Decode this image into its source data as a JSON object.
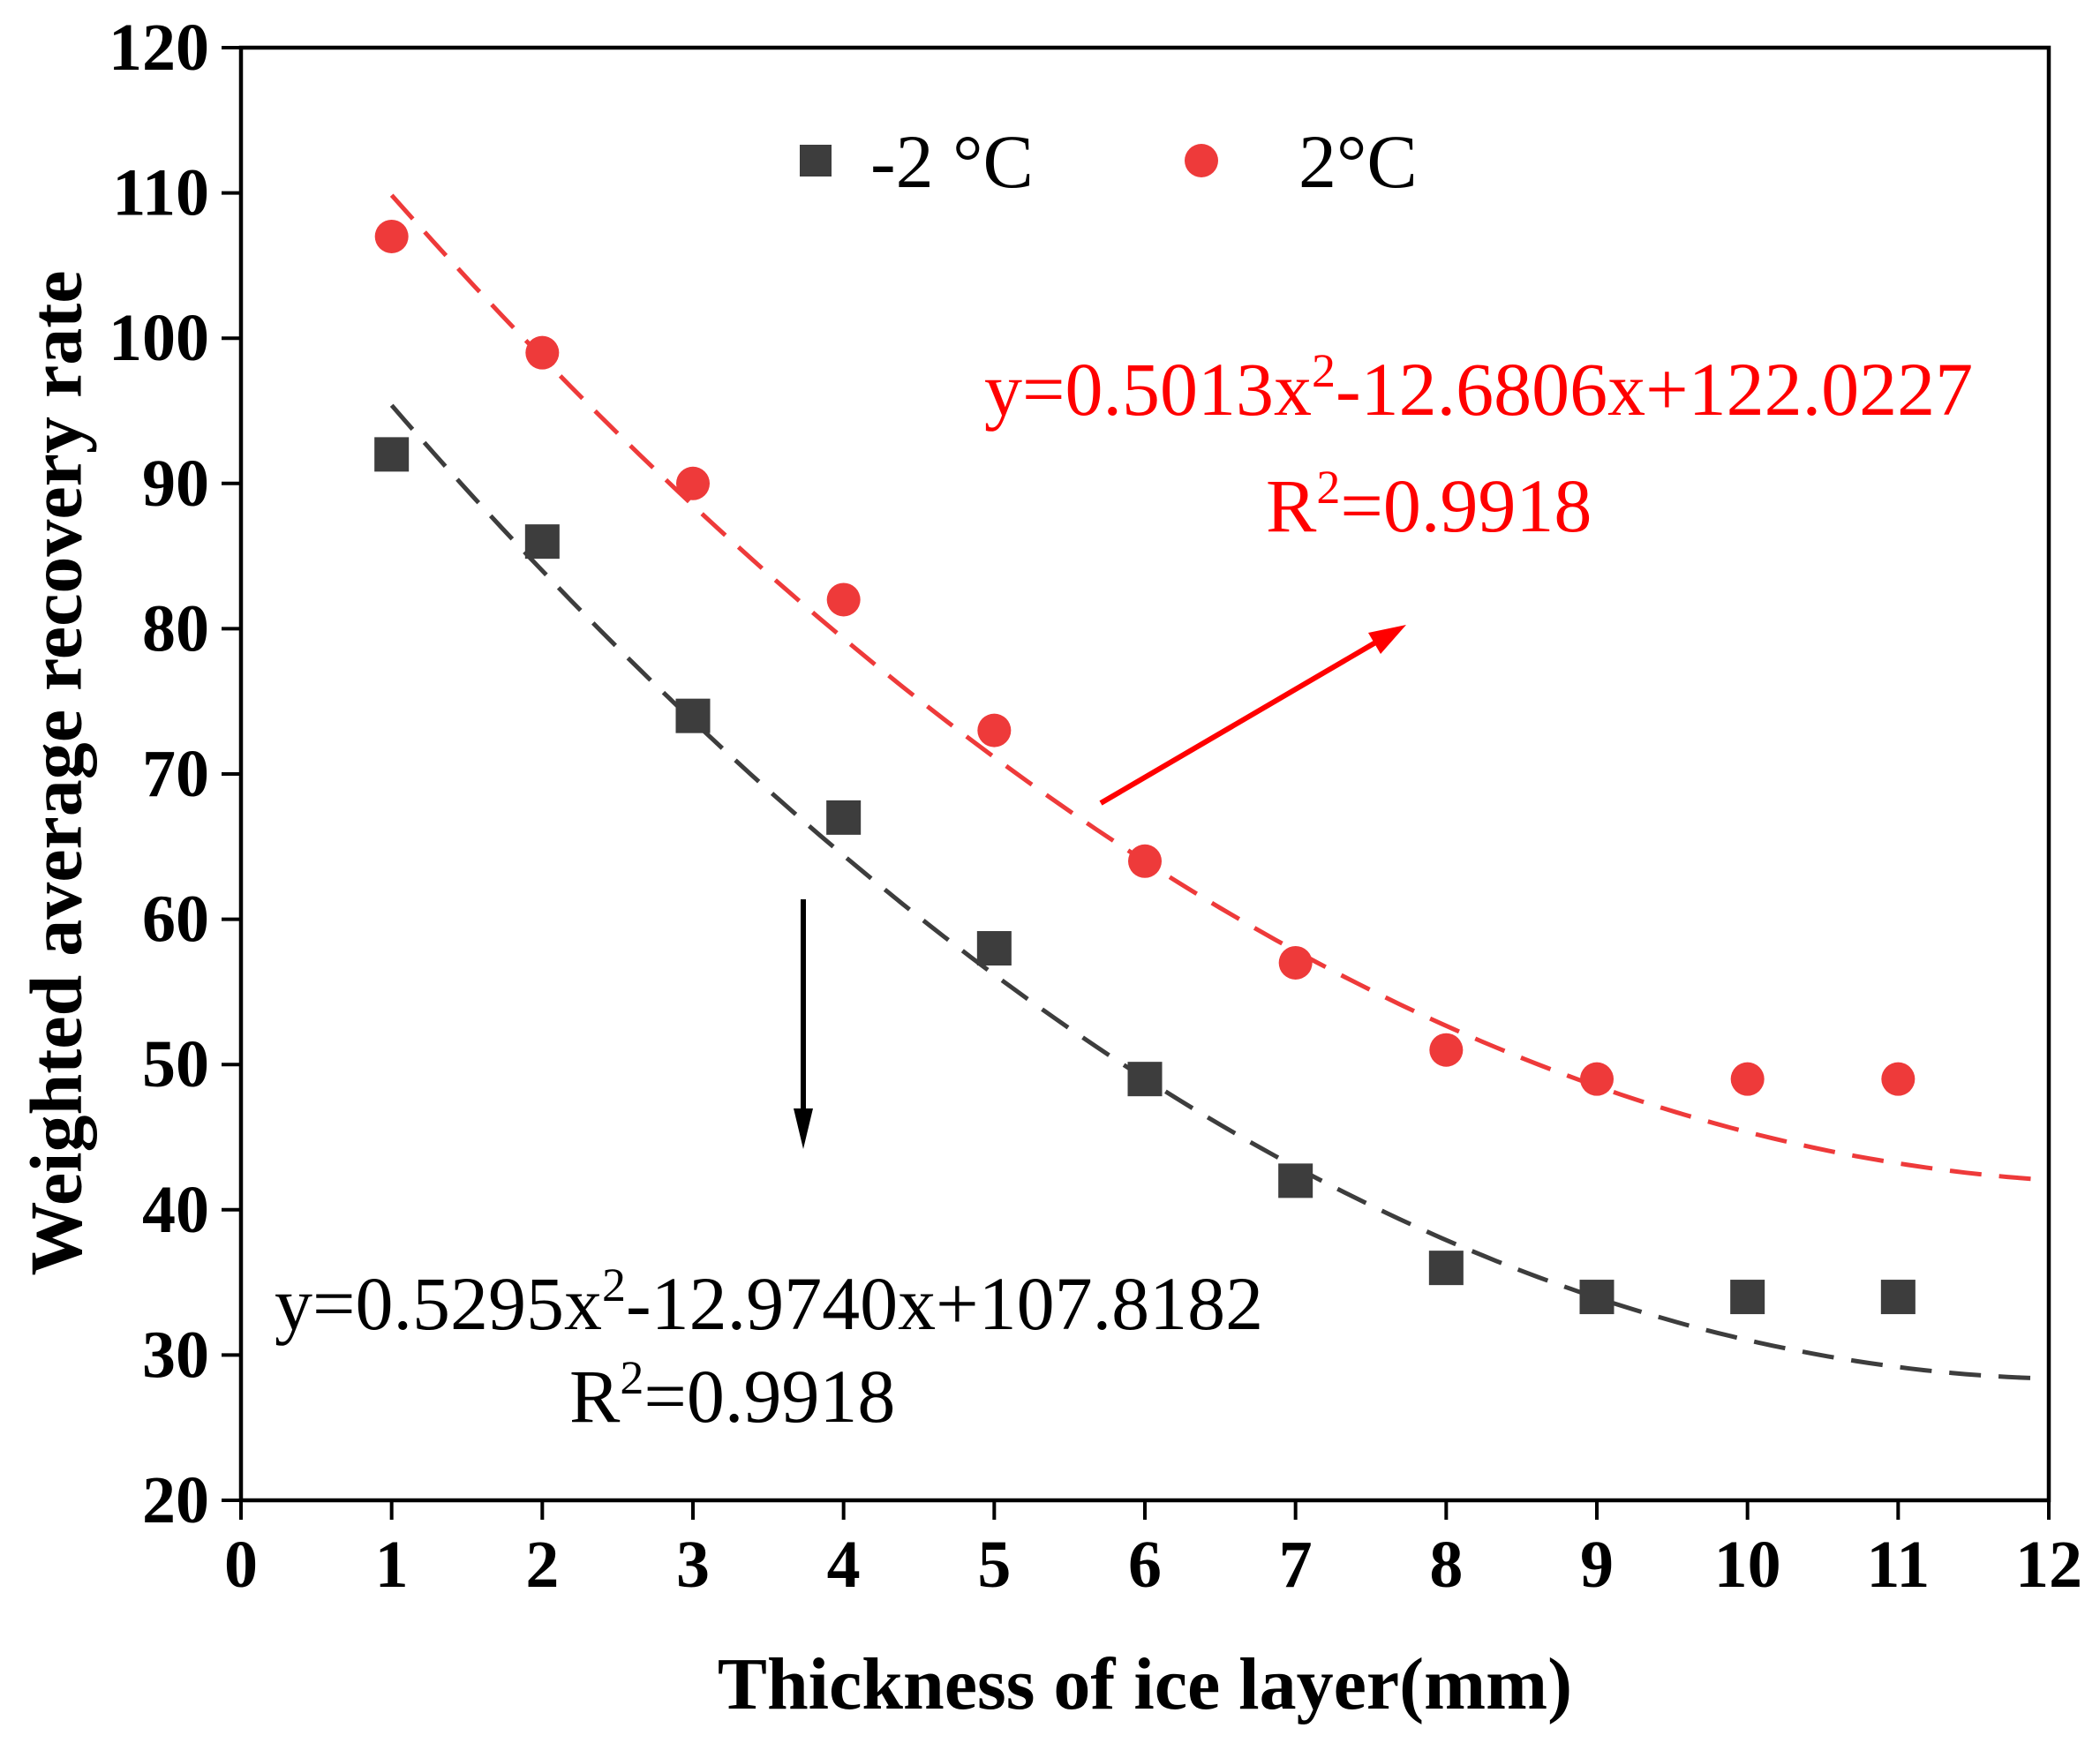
{
  "chart_data": {
    "type": "scatter",
    "title": "",
    "xlabel": "Thickness of ice layer(mm)",
    "ylabel": "Weighted average recovery rate",
    "xlim": [
      0,
      12
    ],
    "ylim": [
      20,
      120
    ],
    "xticks": [
      0,
      1,
      2,
      3,
      4,
      5,
      6,
      7,
      8,
      9,
      10,
      11,
      12
    ],
    "yticks": [
      20,
      30,
      40,
      50,
      60,
      70,
      80,
      90,
      100,
      110,
      120
    ],
    "grid": false,
    "legend_position": "top-center",
    "x": [
      1,
      2,
      3,
      4,
      5,
      6,
      7,
      8,
      9,
      10,
      11
    ],
    "series": [
      {
        "name": "-2 °C",
        "marker": "square",
        "color": "#3d3d3d",
        "values": [
          92,
          86,
          74,
          67,
          58,
          49,
          42,
          36,
          34,
          34,
          34
        ],
        "fit": {
          "coefficients": [
            0.5295,
            -12.974,
            107.8182
          ],
          "x_range": [
            1,
            12
          ],
          "text_color": "#000000",
          "equation": {
            "prefix": "y=0.5295x",
            "sup": "2",
            "suffix": "-12.9740x+107.8182"
          },
          "r_squared": {
            "prefix": "R",
            "sup": "2",
            "suffix": "=0.9918"
          }
        }
      },
      {
        "name": "2°C",
        "marker": "circle",
        "color": "#ee3a3a",
        "values": [
          107,
          99,
          90,
          82,
          73,
          64,
          57,
          51,
          49,
          49,
          49
        ],
        "fit": {
          "coefficients": [
            0.5013,
            -12.6806,
            122.0227
          ],
          "x_range": [
            1,
            12
          ],
          "text_color": "#ff0000",
          "equation": {
            "prefix": "y=0.5013x",
            "sup": "2",
            "suffix": "-12.6806x+122.0227"
          },
          "r_squared": {
            "prefix": "R",
            "sup": "2",
            "suffix": "=0.9918"
          }
        }
      }
    ]
  }
}
